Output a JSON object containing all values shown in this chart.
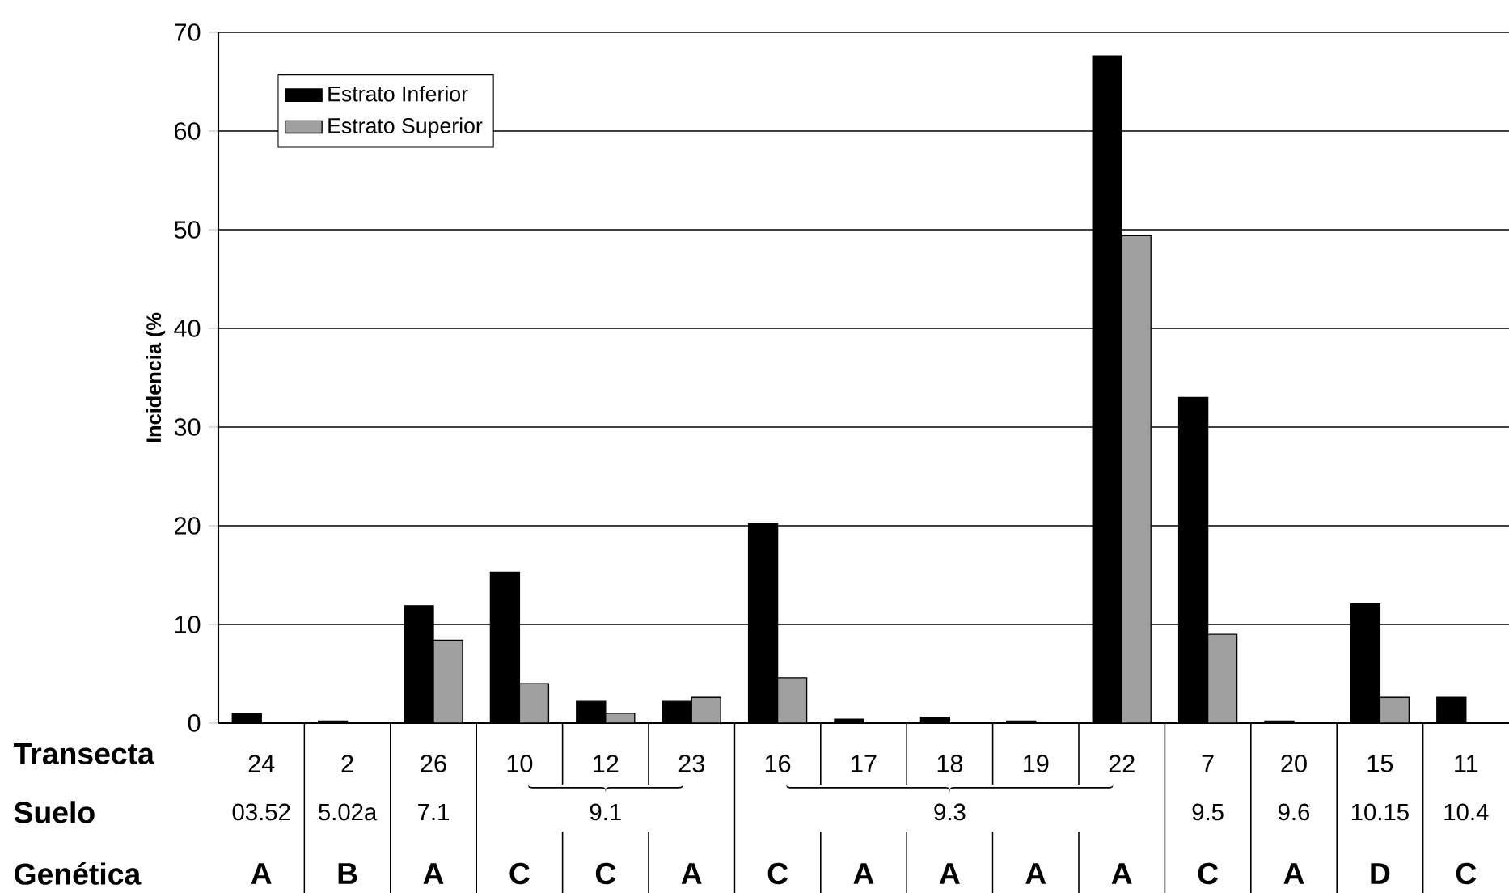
{
  "chart_data": {
    "type": "bar",
    "ylabel": "Incidencia (%",
    "categories": [
      "24",
      "2",
      "26",
      "10",
      "12",
      "23",
      "16",
      "17",
      "18",
      "19",
      "22",
      "7",
      "20",
      "15",
      "11"
    ],
    "series": [
      {
        "name": "Estrato Inferior",
        "color": "#000000",
        "values": [
          1.0,
          0.2,
          11.9,
          15.3,
          2.2,
          2.2,
          20.2,
          0.4,
          0.6,
          0.2,
          67.6,
          33.0,
          0.2,
          12.1,
          2.6
        ]
      },
      {
        "name": "Estrato Superior",
        "color": "#a0a0a0",
        "values": [
          0,
          0,
          8.4,
          4.0,
          1.0,
          2.6,
          4.6,
          0,
          0,
          0,
          49.4,
          9.0,
          0,
          2.6,
          0
        ]
      }
    ],
    "ylim": [
      0,
      70
    ],
    "yticks": [
      0,
      10,
      20,
      30,
      40,
      50,
      60,
      70
    ],
    "grid": "y",
    "legend": "top left",
    "annotations": [
      "Transecta",
      "Suelo",
      "Genética",
      "03.52",
      "5.02a",
      "7.1",
      "9.1",
      "9.3",
      "9.5",
      "9.6",
      "10.15",
      "10.4",
      "A",
      "B",
      "A",
      "C",
      "C",
      "A",
      "C",
      "A",
      "A",
      "A",
      "A",
      "C",
      "A",
      "D",
      "C"
    ]
  }
}
